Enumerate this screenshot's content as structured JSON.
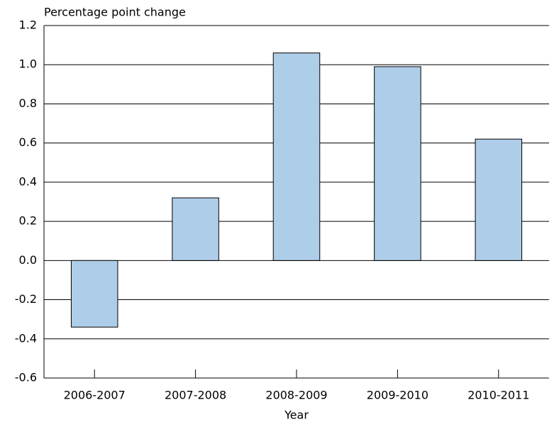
{
  "chart_data": {
    "type": "bar",
    "title": "Percentage point change",
    "x_label": "Year",
    "categories": [
      "2006-2007",
      "2007-2008",
      "2008-2009",
      "2009-2010",
      "2010-2011"
    ],
    "values": [
      -0.34,
      0.32,
      1.06,
      0.99,
      0.62
    ],
    "color": "#aecde9",
    "ylim": [
      -0.6,
      1.2
    ],
    "yticks": [
      -0.6,
      -0.4,
      -0.2,
      {
        "value": 0,
        "label": "0.0"
      },
      0.2,
      0.4,
      0.6,
      0.8,
      {
        "value": 1,
        "label": "1.0"
      },
      1.2
    ],
    "grid": true
  }
}
